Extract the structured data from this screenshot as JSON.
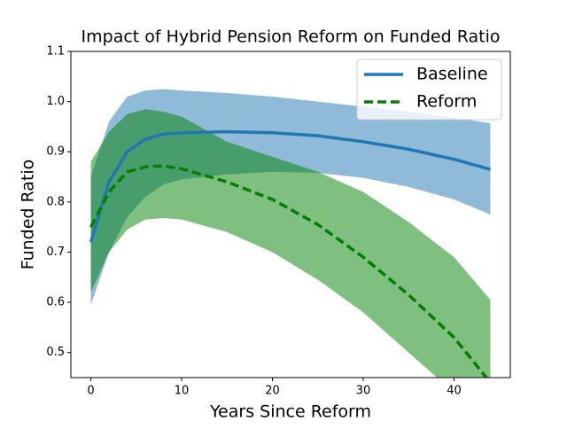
{
  "chart_data": {
    "type": "line",
    "title": "Impact of Hybrid Pension Reform on Funded Ratio",
    "x_label": "Years Since Reform",
    "y_label": "Funded Ratio",
    "x": [
      0,
      2,
      4,
      6,
      8,
      10,
      15,
      20,
      25,
      30,
      35,
      40,
      44
    ],
    "series": [
      {
        "name": "Baseline",
        "color": "#1f77b4",
        "linestyle": "solid",
        "values": [
          0.72,
          0.84,
          0.9,
          0.925,
          0.935,
          0.938,
          0.94,
          0.938,
          0.932,
          0.92,
          0.905,
          0.885,
          0.865
        ],
        "lower": [
          0.595,
          0.7,
          0.77,
          0.81,
          0.835,
          0.845,
          0.855,
          0.86,
          0.858,
          0.848,
          0.83,
          0.805,
          0.775
        ],
        "upper": [
          0.85,
          0.96,
          1.01,
          1.022,
          1.025,
          1.022,
          1.017,
          1.01,
          1.0,
          0.99,
          0.98,
          0.968,
          0.957
        ]
      },
      {
        "name": "Reform",
        "color": "#008000",
        "linestyle": "dashed",
        "values": [
          0.75,
          0.82,
          0.86,
          0.87,
          0.872,
          0.866,
          0.84,
          0.805,
          0.755,
          0.69,
          0.615,
          0.53,
          0.44
        ],
        "lower": [
          0.62,
          0.7,
          0.745,
          0.765,
          0.768,
          0.765,
          0.74,
          0.7,
          0.645,
          0.58,
          0.5,
          0.42,
          0.35
        ],
        "upper": [
          0.88,
          0.94,
          0.975,
          0.985,
          0.98,
          0.97,
          0.92,
          0.89,
          0.86,
          0.82,
          0.76,
          0.69,
          0.605
        ]
      }
    ],
    "xlim": [
      -2.2,
      46.2
    ],
    "ylim": [
      0.45,
      1.1
    ],
    "xticks": [
      0,
      10,
      20,
      30,
      40
    ],
    "yticks": [
      0.5,
      0.6,
      0.7,
      0.8,
      0.9,
      {
        "value": 1,
        "label": "1.0"
      },
      1.1
    ],
    "band_opacity": 0.5,
    "legend": "upper right",
    "grid": false
  }
}
